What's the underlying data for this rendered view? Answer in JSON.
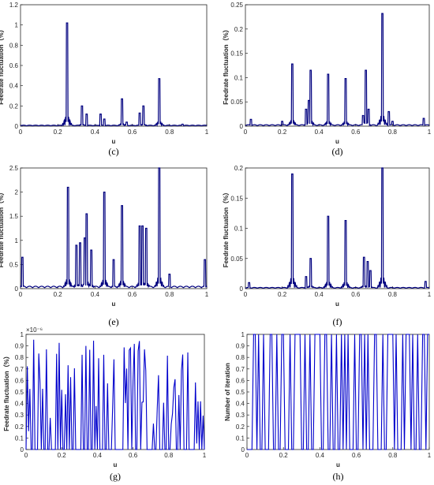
{
  "chart_data": [
    {
      "id": "c",
      "type": "line",
      "caption": "(c)",
      "xlabel": "u",
      "ylabel": "Feedrate fluctuation（%）",
      "xlim": [
        0,
        1
      ],
      "ylim": [
        0,
        1.2
      ],
      "xticks": [
        "0",
        "0.2",
        "0.4",
        "0.6",
        "0.8",
        "1"
      ],
      "yticks": [
        "0",
        "0.2",
        "0.4",
        "0.6",
        "0.8",
        "1",
        "1.2"
      ],
      "exponent": "",
      "series": [
        {
          "color": "#00007f",
          "baseline": 0.01,
          "peaks": [
            [
              0.25,
              1.02
            ],
            [
              0.33,
              0.2
            ],
            [
              0.355,
              0.12
            ],
            [
              0.43,
              0.12
            ],
            [
              0.45,
              0.07
            ],
            [
              0.545,
              0.27
            ],
            [
              0.57,
              0.04
            ],
            [
              0.64,
              0.13
            ],
            [
              0.66,
              0.2
            ],
            [
              0.745,
              0.47
            ],
            [
              0.87,
              0.02
            ]
          ]
        }
      ]
    },
    {
      "id": "d",
      "type": "line",
      "caption": "(d)",
      "xlabel": "u",
      "ylabel": "Feedrate fluctuation（%）",
      "xlim": [
        0,
        1
      ],
      "ylim": [
        0,
        0.25
      ],
      "xticks": [
        "0",
        "0.2",
        "0.4",
        "0.6",
        "0.8",
        "1"
      ],
      "yticks": [
        "0",
        "0.05",
        "0.1",
        "0.15",
        "0.2",
        "0.25"
      ],
      "exponent": "",
      "series": [
        {
          "color": "#00007f",
          "baseline": 0.003,
          "peaks": [
            [
              0.255,
              0.128
            ],
            [
              0.33,
              0.035
            ],
            [
              0.345,
              0.053
            ],
            [
              0.355,
              0.115
            ],
            [
              0.45,
              0.107
            ],
            [
              0.545,
              0.098
            ],
            [
              0.64,
              0.022
            ],
            [
              0.655,
              0.115
            ],
            [
              0.67,
              0.035
            ],
            [
              0.745,
              0.232
            ],
            [
              0.78,
              0.03
            ],
            [
              0.03,
              0.014
            ],
            [
              0.97,
              0.016
            ],
            [
              0.2,
              0.01
            ],
            [
              0.8,
              0.01
            ]
          ]
        }
      ]
    },
    {
      "id": "e",
      "type": "line",
      "caption": "(e)",
      "xlabel": "u",
      "ylabel": "Feedrate fluctuation（%）",
      "xlim": [
        0,
        1
      ],
      "ylim": [
        0,
        2.5
      ],
      "xticks": [
        "0",
        "0.2",
        "0.4",
        "0.6",
        "0.8",
        "1"
      ],
      "yticks": [
        "0",
        "0.5",
        "1",
        "1.5",
        "2",
        "2.5"
      ],
      "exponent": "",
      "series": [
        {
          "color": "#00007f",
          "baseline": 0.05,
          "peaks": [
            [
              0.01,
              0.65
            ],
            [
              0.255,
              2.1
            ],
            [
              0.3,
              0.9
            ],
            [
              0.32,
              0.95
            ],
            [
              0.345,
              1.05
            ],
            [
              0.355,
              1.55
            ],
            [
              0.38,
              0.8
            ],
            [
              0.45,
              2.0
            ],
            [
              0.5,
              0.6
            ],
            [
              0.545,
              1.72
            ],
            [
              0.64,
              1.3
            ],
            [
              0.655,
              1.3
            ],
            [
              0.675,
              1.25
            ],
            [
              0.745,
              2.5
            ],
            [
              0.8,
              0.3
            ],
            [
              0.99,
              0.6
            ]
          ]
        }
      ]
    },
    {
      "id": "f",
      "type": "line",
      "caption": "(f)",
      "xlabel": "u",
      "ylabel": "Feedrate fluctuation（%）",
      "xlim": [
        0,
        1
      ],
      "ylim": [
        0,
        0.2
      ],
      "xticks": [
        "0",
        "0.2",
        "0.4",
        "0.6",
        "0.8",
        "1"
      ],
      "yticks": [
        "0",
        "0.05",
        "0.1",
        "0.15",
        "0.2"
      ],
      "exponent": "",
      "series": [
        {
          "color": "#00007f",
          "baseline": 0.002,
          "peaks": [
            [
              0.255,
              0.19
            ],
            [
              0.33,
              0.02
            ],
            [
              0.355,
              0.05
            ],
            [
              0.45,
              0.12
            ],
            [
              0.545,
              0.113
            ],
            [
              0.645,
              0.052
            ],
            [
              0.665,
              0.045
            ],
            [
              0.68,
              0.03
            ],
            [
              0.745,
              0.2
            ],
            [
              0.02,
              0.01
            ],
            [
              0.98,
              0.012
            ]
          ]
        }
      ]
    },
    {
      "id": "g",
      "type": "line",
      "caption": "(g)",
      "xlabel": "u",
      "ylabel": "Feedrate fluctuation（%）",
      "xlim": [
        0,
        1
      ],
      "ylim": [
        0,
        1
      ],
      "xticks": [
        "0",
        "0.2",
        "0.4",
        "0.6",
        "0.8",
        "1"
      ],
      "yticks": [
        "0",
        "0.1",
        "0.2",
        "0.3",
        "0.4",
        "0.5",
        "0.6",
        "0.7",
        "0.8",
        "0.9",
        "1"
      ],
      "exponent": "×10⁻⁶",
      "series": [
        {
          "color": "#0000cc",
          "dense": "random",
          "seed": 7,
          "min": 0.0,
          "max": 0.97,
          "count": 140
        }
      ]
    },
    {
      "id": "h",
      "type": "line",
      "caption": "(h)",
      "xlabel": "u",
      "ylabel": "Number of iteration",
      "xlim": [
        0,
        1
      ],
      "ylim": [
        0,
        1
      ],
      "xticks": [
        "0",
        "0.2",
        "0.4",
        "0.6",
        "0.8",
        "1"
      ],
      "yticks": [
        "0",
        "0.1",
        "0.2",
        "0.3",
        "0.4",
        "0.5",
        "0.6",
        "0.7",
        "0.8",
        "0.9",
        "1"
      ],
      "exponent": "",
      "series": [
        {
          "color": "#0000cc",
          "dense": "binary",
          "seed": 11,
          "count": 110
        }
      ]
    }
  ]
}
